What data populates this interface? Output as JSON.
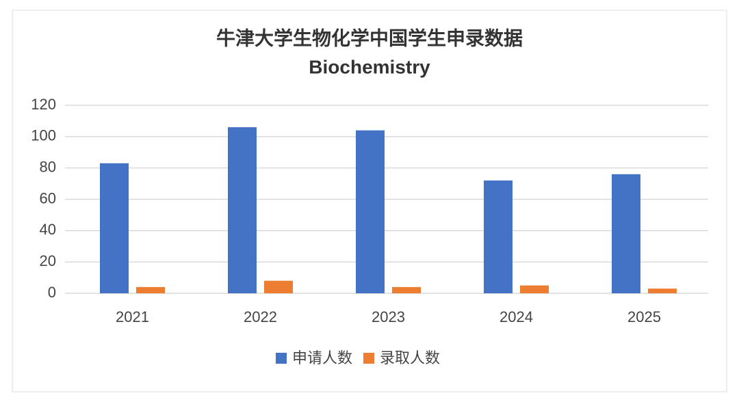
{
  "chart_data": {
    "type": "bar",
    "title": "牛津大学生物化学中国学生申录数据",
    "subtitle": "Biochemistry",
    "categories": [
      "2021",
      "2022",
      "2023",
      "2024",
      "2025"
    ],
    "series": [
      {
        "name": "申请人数",
        "color": "#4472c4",
        "values": [
          83,
          106,
          104,
          72,
          76
        ]
      },
      {
        "name": "录取人数",
        "color": "#ed7d31",
        "values": [
          4,
          8,
          4,
          5,
          3
        ]
      }
    ],
    "ylim": [
      0,
      120
    ],
    "yticks": [
      0,
      20,
      40,
      60,
      80,
      100,
      120
    ],
    "grid": true,
    "legend": "bottom"
  }
}
